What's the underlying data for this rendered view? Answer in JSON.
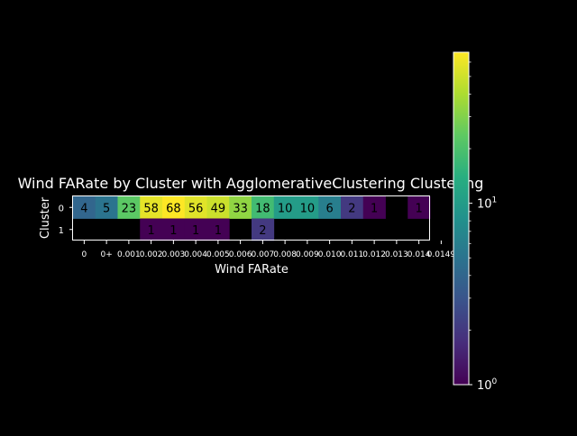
{
  "chart_data": {
    "type": "heatmap",
    "title": "Wind FARate by Cluster with AgglomerativeClustering Clustering",
    "xlabel": "Wind FARate",
    "ylabel": "Cluster",
    "rows": [
      "0",
      "1"
    ],
    "columns": [
      "0",
      "0+",
      "0.001",
      "0.002",
      "0.003",
      "0.004",
      "0.005",
      "0.006",
      "0.007",
      "0.008",
      "0.009",
      "0.010",
      "0.011",
      "0.012",
      "0.013",
      "0.014",
      "0.0149"
    ],
    "x_tick_labels": [
      "0",
      "0+",
      "0.001",
      "0.002",
      "0.003",
      "0.004",
      "0.005",
      "0.006",
      "0.007",
      "0.008",
      "0.009",
      "0.010",
      "0.011",
      "0.012",
      "0.013",
      "0.014",
      "0.0149"
    ],
    "values": [
      [
        4,
        5,
        23,
        58,
        68,
        56,
        49,
        33,
        18,
        10,
        10,
        6,
        2,
        1,
        null,
        1,
        null
      ],
      [
        null,
        null,
        null,
        1,
        1,
        1,
        1,
        null,
        2,
        null,
        null,
        null,
        null,
        null,
        null,
        null,
        null
      ]
    ],
    "colorbar": {
      "scale": "log",
      "range": [
        1,
        68
      ],
      "ticks": [
        "10^0",
        "10^1"
      ],
      "colormap": "viridis"
    },
    "colors": {
      "background": "#000000",
      "text": "#ffffff"
    }
  }
}
